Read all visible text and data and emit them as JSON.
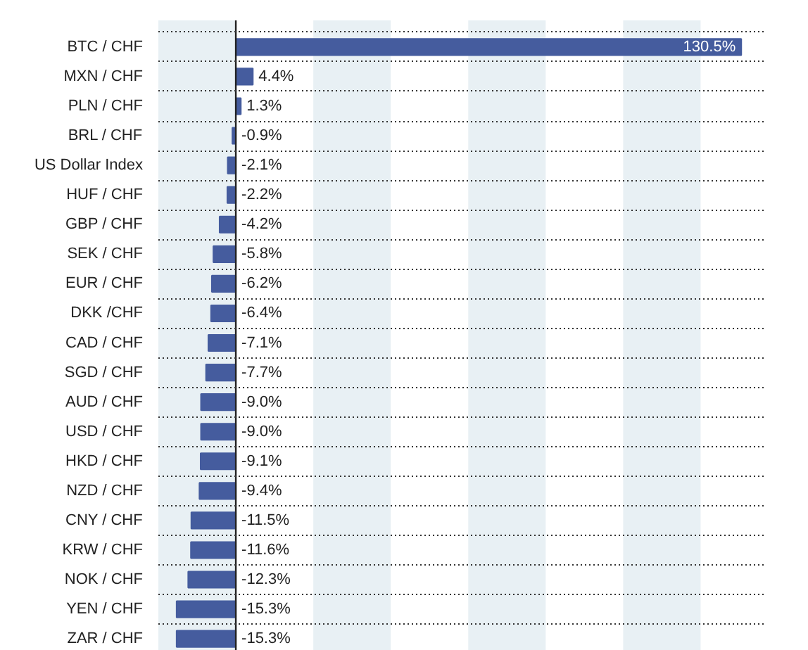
{
  "chart_data": {
    "type": "bar",
    "orientation": "horizontal",
    "categories": [
      "BTC / CHF",
      "MXN / CHF",
      "PLN / CHF",
      "BRL / CHF",
      "US Dollar Index",
      "HUF / CHF",
      "GBP / CHF",
      "SEK / CHF",
      "EUR / CHF",
      "DKK /CHF",
      "CAD / CHF",
      "SGD / CHF",
      "AUD / CHF",
      "USD / CHF",
      "HKD / CHF",
      "NZD / CHF",
      "CNY / CHF",
      "KRW / CHF",
      "NOK / CHF",
      "YEN / CHF",
      "ZAR / CHF"
    ],
    "values": [
      130.5,
      4.4,
      1.3,
      -0.9,
      -2.1,
      -2.2,
      -4.2,
      -5.8,
      -6.2,
      -6.4,
      -7.1,
      -7.7,
      -9.0,
      -9.0,
      -9.1,
      -9.4,
      -11.5,
      -11.6,
      -12.3,
      -15.3,
      -15.3
    ],
    "value_labels": [
      "130.5%",
      "4.4%",
      "1.3%",
      "-0.9%",
      "-2.1%",
      "-2.2%",
      "-4.2%",
      "-5.8%",
      "-6.2%",
      "-6.4%",
      "-7.1%",
      "-7.7%",
      "-9.0%",
      "-9.0%",
      "-9.1%",
      "-9.4%",
      "-11.5%",
      "-11.6%",
      "-12.3%",
      "-15.3%",
      "-15.3%"
    ],
    "color": "#455c9e",
    "xlim": [
      -20,
      137
    ],
    "tick_labels": "y",
    "grid": "y",
    "ref_lines": [
      {
        "axis": "x",
        "value": 0,
        "color": "#222222"
      }
    ],
    "bands": [
      {
        "axis": "x",
        "from": -20,
        "to": 0,
        "color": "#e8f0f4"
      },
      {
        "axis": "x",
        "from": 20,
        "to": 40,
        "color": "#e8f0f4"
      },
      {
        "axis": "x",
        "from": 60,
        "to": 80,
        "color": "#e8f0f4"
      },
      {
        "axis": "x",
        "from": 100,
        "to": 120,
        "color": "#e8f0f4"
      }
    ]
  }
}
